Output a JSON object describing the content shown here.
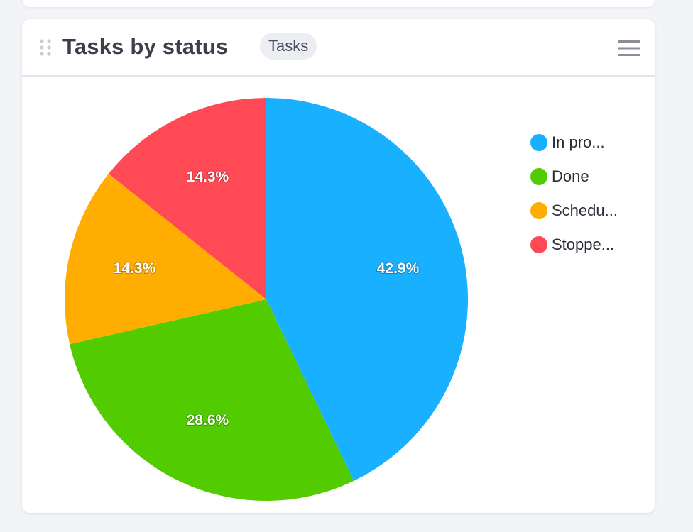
{
  "card": {
    "title": "Tasks by status",
    "tag": "Tasks"
  },
  "icons": {
    "drag": "drag-handle-icon",
    "menu": "hamburger-menu-icon"
  },
  "chart_data": {
    "type": "pie",
    "title": "Tasks by status",
    "legend_position": "right",
    "slices": [
      {
        "name": "In progress",
        "legend_label": "In pro...",
        "value": 42.9,
        "label": "42.9%",
        "color": "#19b0ff"
      },
      {
        "name": "Done",
        "legend_label": "Done",
        "value": 28.6,
        "label": "28.6%",
        "color": "#52cc00"
      },
      {
        "name": "Scheduled",
        "legend_label": "Schedu...",
        "value": 14.3,
        "label": "14.3%",
        "color": "#ffad00"
      },
      {
        "name": "Stopped",
        "legend_label": "Stoppe...",
        "value": 14.3,
        "label": "14.3%",
        "color": "#ff4a55"
      }
    ]
  }
}
